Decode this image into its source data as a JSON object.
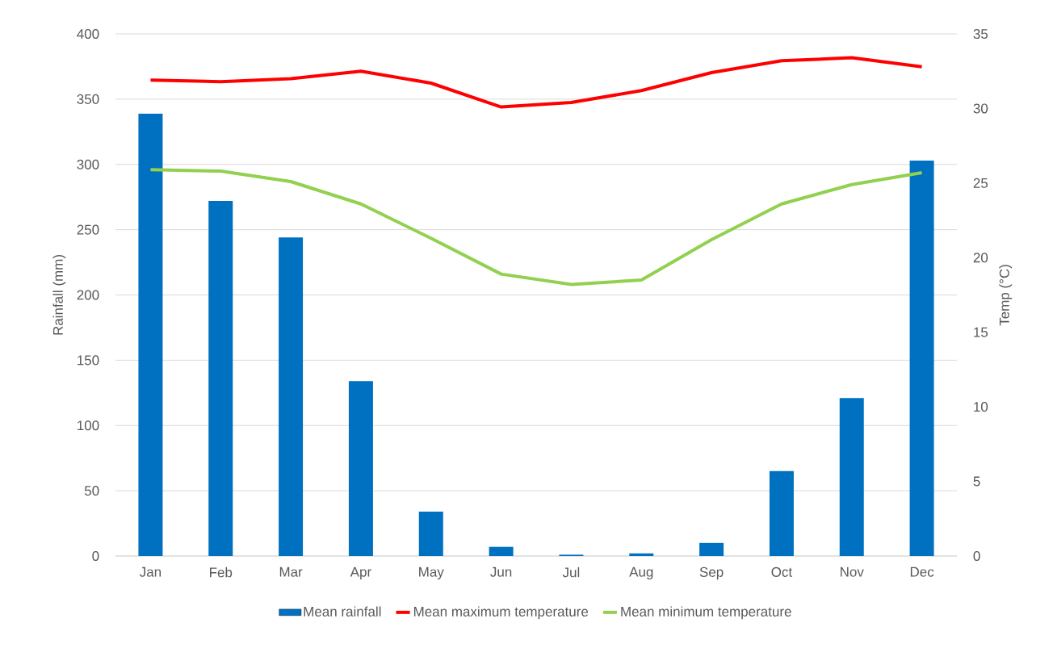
{
  "chart_data": {
    "type": "bar",
    "ylabel": "Rainfall (mm)",
    "y2label": "Temp (°C)",
    "categories": [
      "Jan",
      "Feb",
      "Mar",
      "Apr",
      "May",
      "Jun",
      "Jul",
      "Aug",
      "Sep",
      "Oct",
      "Nov",
      "Dec"
    ],
    "series": [
      {
        "name": "Mean rainfall",
        "color": "#0070c0",
        "values": [
          339,
          272,
          244,
          134,
          34,
          7,
          1,
          2,
          10,
          65,
          121,
          303
        ]
      },
      {
        "name": "Mean maximum temperature",
        "type": "line",
        "axis": "y2",
        "color": "#ff0000",
        "values": [
          31.9,
          31.8,
          32.0,
          32.5,
          31.7,
          30.1,
          30.4,
          31.2,
          32.4,
          33.2,
          33.4,
          32.8
        ]
      },
      {
        "name": "Mean minimum temperature",
        "type": "line",
        "axis": "y2",
        "color": "#92d050",
        "values": [
          25.9,
          25.8,
          25.1,
          23.6,
          21.3,
          18.9,
          18.2,
          18.5,
          21.2,
          23.6,
          24.9,
          25.7
        ]
      }
    ],
    "ylim": [
      0,
      400
    ],
    "yticks": [
      0,
      50,
      100,
      150,
      200,
      250,
      300,
      350,
      400
    ],
    "y2lim": [
      0,
      35
    ],
    "y2ticks": [
      0,
      5,
      10,
      15,
      20,
      25,
      30,
      35
    ],
    "grid": "y",
    "legend": "bottom"
  }
}
